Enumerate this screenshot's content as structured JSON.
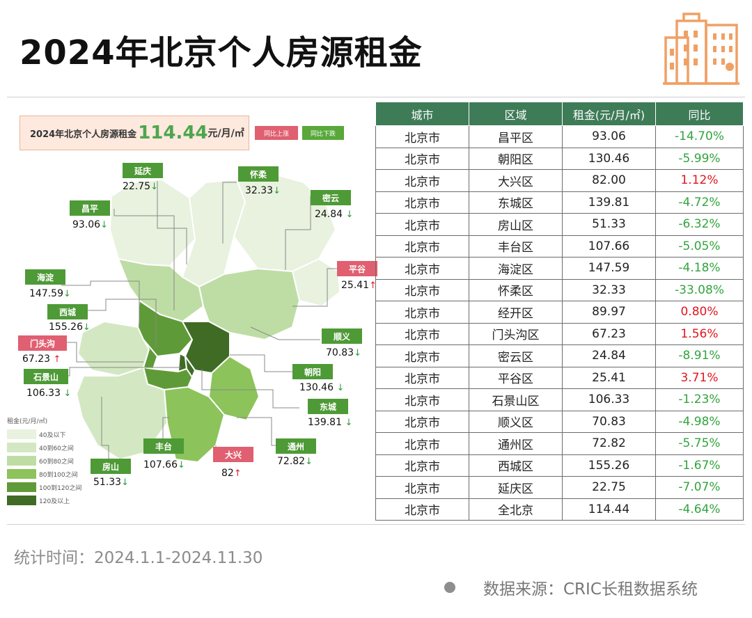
{
  "title": "2024年北京个人房源租金",
  "headline": {
    "label": "2024年北京个人房源租金",
    "value": "114.44",
    "unit": "元/月/㎡"
  },
  "key": {
    "up": "同比上涨",
    "down": "同比下跌"
  },
  "colors": {
    "header_bg": "#3e7b57",
    "positive": "#e2151e",
    "negative": "#31a43c",
    "label_green": "#4e9a36",
    "label_red": "#e05f70"
  },
  "map": {
    "districts": [
      {
        "name": "延庆",
        "value": "22.75",
        "trend": "down"
      },
      {
        "name": "怀柔",
        "value": "32.33",
        "trend": "down"
      },
      {
        "name": "密云",
        "value": "24.84",
        "trend": "down"
      },
      {
        "name": "昌平",
        "value": "93.06",
        "trend": "down"
      },
      {
        "name": "平谷",
        "value": "25.41",
        "trend": "up"
      },
      {
        "name": "海淀",
        "value": "147.59",
        "trend": "down"
      },
      {
        "name": "西城",
        "value": "155.26",
        "trend": "down"
      },
      {
        "name": "顺义",
        "value": "70.83",
        "trend": "down"
      },
      {
        "name": "门头沟",
        "value": "67.23",
        "trend": "up"
      },
      {
        "name": "朝阳",
        "value": "130.46",
        "trend": "down"
      },
      {
        "name": "石景山",
        "value": "106.33",
        "trend": "down"
      },
      {
        "name": "东城",
        "value": "139.81",
        "trend": "down"
      },
      {
        "name": "通州",
        "value": "72.82",
        "trend": "down"
      },
      {
        "name": "丰台",
        "value": "107.66",
        "trend": "down"
      },
      {
        "name": "大兴",
        "value": "82",
        "trend": "up"
      },
      {
        "name": "房山",
        "value": "51.33",
        "trend": "down"
      }
    ],
    "legend": {
      "title": "租金(元/月/㎡)",
      "items": [
        {
          "label": "40及以下",
          "color": "#e8f2df"
        },
        {
          "label": "40到60之间",
          "color": "#d3e8c2"
        },
        {
          "label": "60到80之间",
          "color": "#bedda4"
        },
        {
          "label": "80到100之间",
          "color": "#8cc35b"
        },
        {
          "label": "100到120之间",
          "color": "#5f9a38"
        },
        {
          "label": "120及以上",
          "color": "#3f6b25"
        }
      ]
    }
  },
  "table": {
    "headers": [
      "城市",
      "区域",
      "租金(元/月/㎡)",
      "同比"
    ],
    "rows": [
      [
        "北京市",
        "昌平区",
        "93.06",
        "-14.70%"
      ],
      [
        "北京市",
        "朝阳区",
        "130.46",
        "-5.99%"
      ],
      [
        "北京市",
        "大兴区",
        "82.00",
        "1.12%"
      ],
      [
        "北京市",
        "东城区",
        "139.81",
        "-4.72%"
      ],
      [
        "北京市",
        "房山区",
        "51.33",
        "-6.32%"
      ],
      [
        "北京市",
        "丰台区",
        "107.66",
        "-5.05%"
      ],
      [
        "北京市",
        "海淀区",
        "147.59",
        "-4.18%"
      ],
      [
        "北京市",
        "怀柔区",
        "32.33",
        "-33.08%"
      ],
      [
        "北京市",
        "经开区",
        "89.97",
        "0.80%"
      ],
      [
        "北京市",
        "门头沟区",
        "67.23",
        "1.56%"
      ],
      [
        "北京市",
        "密云区",
        "24.84",
        "-8.91%"
      ],
      [
        "北京市",
        "平谷区",
        "25.41",
        "3.71%"
      ],
      [
        "北京市",
        "石景山区",
        "106.33",
        "-1.23%"
      ],
      [
        "北京市",
        "顺义区",
        "70.83",
        "-4.98%"
      ],
      [
        "北京市",
        "通州区",
        "72.82",
        "-5.75%"
      ],
      [
        "北京市",
        "西城区",
        "155.26",
        "-1.67%"
      ],
      [
        "北京市",
        "延庆区",
        "22.75",
        "-7.07%"
      ],
      [
        "北京市",
        "全北京",
        "114.44",
        "-4.64%"
      ]
    ]
  },
  "footer": {
    "time": "统计时间：2024.1.1-2024.11.30",
    "source": "数据来源：CRIC长租数据系统"
  }
}
